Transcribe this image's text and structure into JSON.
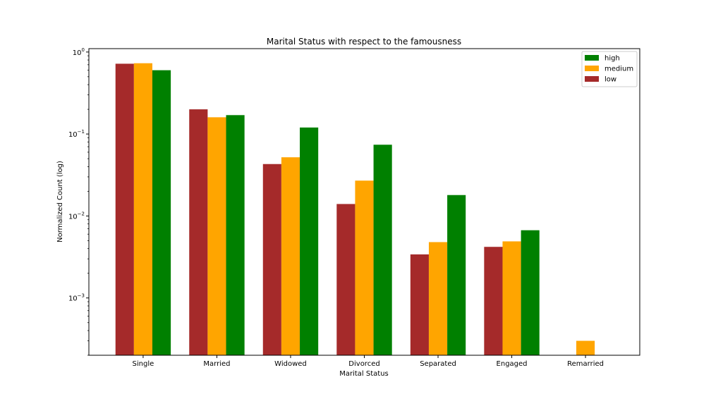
{
  "chart_data": {
    "type": "bar",
    "title": "Marital Status with respect to the famousness",
    "xlabel": "Marital Status",
    "ylabel": "Normalized Count (log)",
    "yscale": "log",
    "ylim": [
      0.0002,
      1.1
    ],
    "yticks": [
      {
        "value": 0.001,
        "base": "10",
        "exp": "−3"
      },
      {
        "value": 0.01,
        "base": "10",
        "exp": "−2"
      },
      {
        "value": 0.1,
        "base": "10",
        "exp": "−1"
      },
      {
        "value": 1,
        "base": "10",
        "exp": "0"
      }
    ],
    "categories": [
      "Single",
      "Married",
      "Widowed",
      "Divorced",
      "Separated",
      "Engaged",
      "Remarried"
    ],
    "series": [
      {
        "name": "low",
        "color": "#a52a2a",
        "values": [
          0.72,
          0.2,
          0.043,
          0.014,
          0.0034,
          0.0042,
          null
        ]
      },
      {
        "name": "medium",
        "color": "#ffa500",
        "values": [
          0.73,
          0.16,
          0.052,
          0.027,
          0.0048,
          0.0049,
          0.0003
        ]
      },
      {
        "name": "high",
        "color": "#008000",
        "values": [
          0.6,
          0.17,
          0.12,
          0.074,
          0.018,
          0.0067,
          null
        ]
      }
    ],
    "legend": {
      "placement": "top-right",
      "order": [
        "high",
        "medium",
        "low"
      ]
    },
    "grid": false
  }
}
